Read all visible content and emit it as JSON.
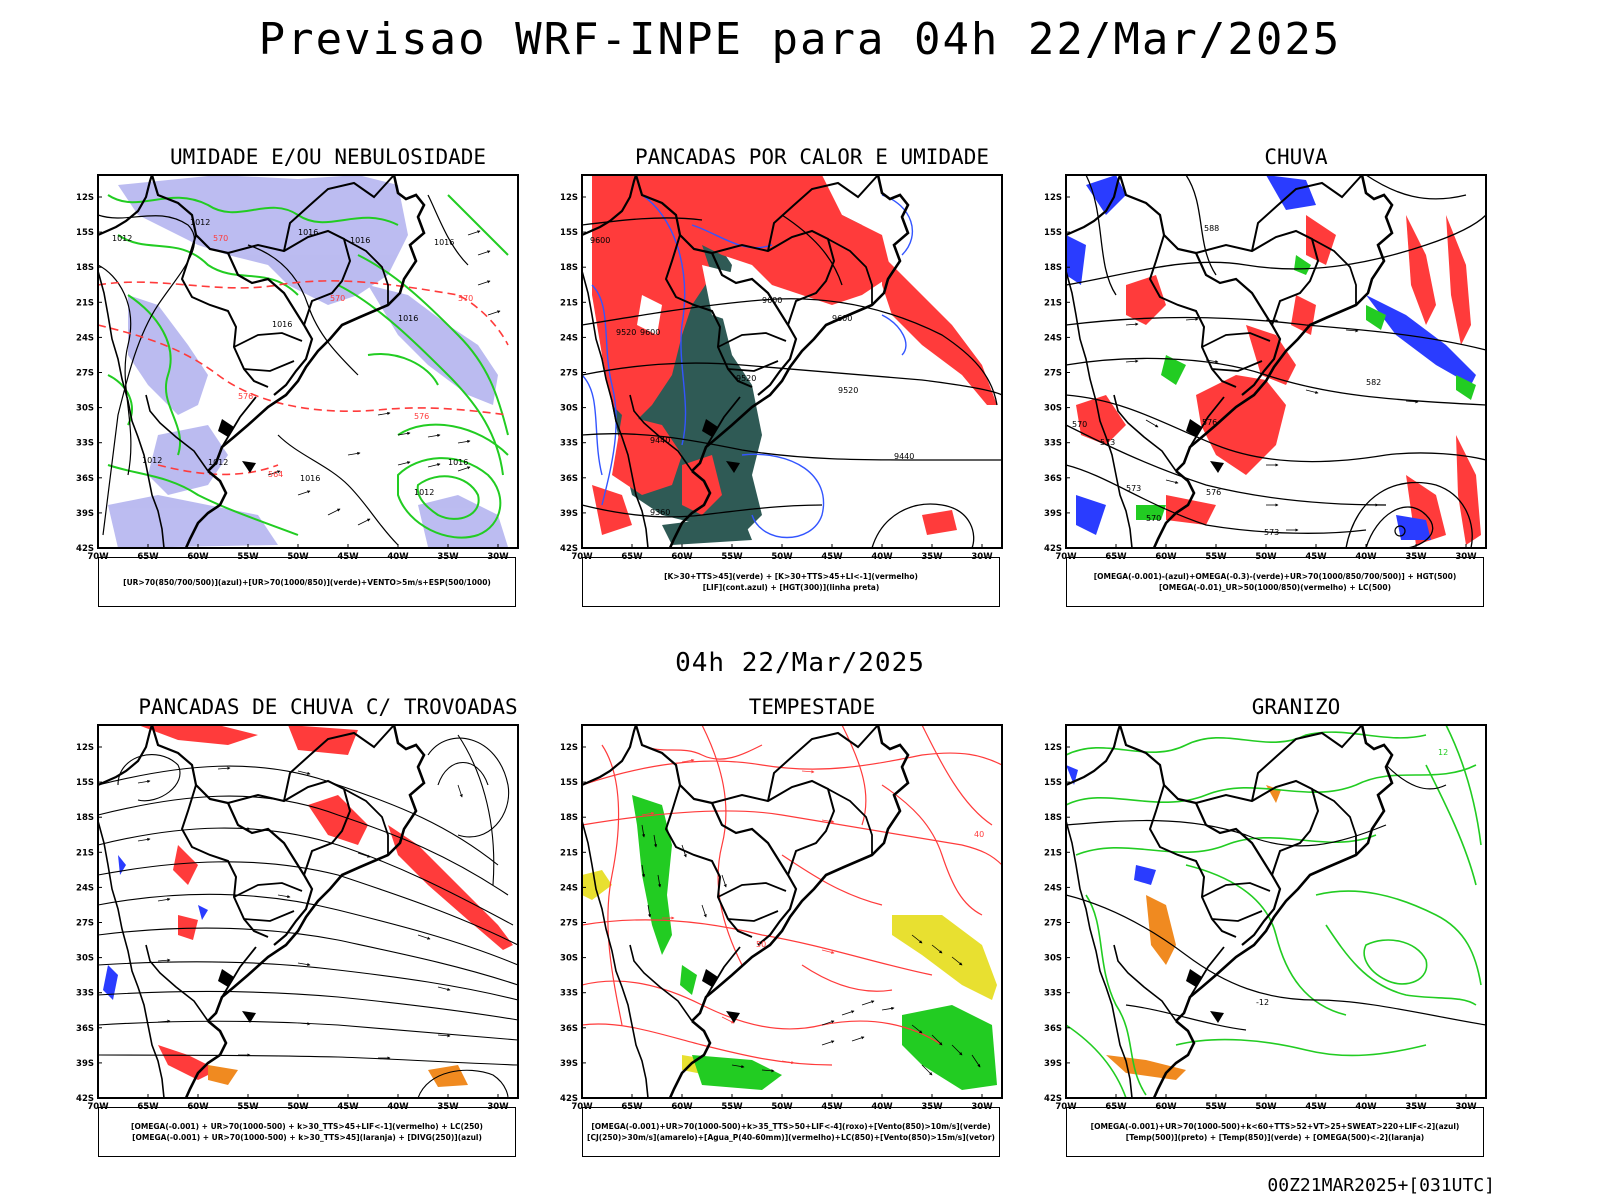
{
  "page": {
    "title": "Previsao WRF-INPE  para 04h 22/Mar/2025",
    "subtitle": "04h 22/Mar/2025",
    "footer": "00Z21MAR2025+[031UTC]"
  },
  "axes": {
    "lat_labels": [
      "12S",
      "15S",
      "18S",
      "21S",
      "24S",
      "27S",
      "30S",
      "33S",
      "36S",
      "39S",
      "42S"
    ],
    "lon_labels": [
      "70W",
      "65W",
      "60W",
      "55W",
      "50W",
      "45W",
      "40W",
      "35W",
      "30W"
    ]
  },
  "panels": [
    {
      "title": "UMIDADE E/OU NEBULOSIDADE",
      "legend": [
        "[UR>70(850/700/500)](azul)+[UR>70(1000/850)](verde)+VENTO>5m/s+ESP(500/1000)"
      ],
      "contour_labels": [
        "1012",
        "1016",
        "1016",
        "1016",
        "1012",
        "1016",
        "1016",
        "1012",
        "1012",
        "1016",
        "1012",
        "1016"
      ],
      "red_labels": [
        "570",
        "570",
        "570",
        "576",
        "576",
        "564"
      ]
    },
    {
      "title": "PANCADAS POR CALOR E UMIDADE",
      "legend": [
        "[K>30+TTS>45](verde) + [K>30+TTS>45+LI<-1](vermelho)",
        "[LIF](cont.azul) + [HGT(300)](linha preta)"
      ],
      "contour_labels": [
        "9600",
        "9600",
        "9520",
        "9600",
        "9600",
        "9520",
        "9520",
        "9440",
        "9440",
        "9360"
      ]
    },
    {
      "title": "CHUVA",
      "legend": [
        "[OMEGA(-0.001)-(azul)+OMEGA(-0.3)-(verde)+UR>70(1000/850/700/500)] + HGT(500)",
        "[OMEGA(-0.01)_UR>50(1000/850)(vermelho) + LC(500)"
      ],
      "contour_labels": [
        "588",
        "582",
        "576",
        "573",
        "570",
        "573",
        "576",
        "570",
        "573"
      ]
    },
    {
      "title": "PANCADAS DE CHUVA C/ TROVOADAS",
      "legend": [
        "[OMEGA(-0.001) + UR>70(1000-500) + k>30_TTS>45+LIF<-1](vermelho) + LC(250)",
        "[OMEGA(-0.001) + UR>70(1000-500) + k>30_TTS>45](laranja) + [DIVG(250)](azul)"
      ]
    },
    {
      "title": "TEMPESTADE",
      "legend": [
        "[OMEGA(-0.001)+UR>70(1000-500)+k>35_TTS>50+LIF<-4](roxo)+[Vento(850)>10m/s](verde)",
        "[CJ(250)>30m/s](amarelo)+[Agua_P(40-60mm)](vermelho)+LC(850)+[Vento(850)>15m/s](vetor)"
      ],
      "contour_labels": [
        "50",
        "40"
      ]
    },
    {
      "title": "GRANIZO",
      "legend": [
        "[OMEGA(-0.001)+UR>70(1000-500)+k<60+TTS>52+VT>25+SWEAT>220+LIF<-2](azul)",
        "[Temp(500)](preto) + [Temp(850)](verde) + [OMEGA(500)<-2](laranja)"
      ],
      "contour_labels": [
        "-12",
        "12"
      ]
    }
  ],
  "colors": {
    "blue_fill": "#b8b8f0",
    "red": "#ff3b3b",
    "green": "#22cc22",
    "dark_teal": "#2f5a55",
    "contour_blue": "#3355ff",
    "yellow": "#e8e030",
    "orange": "#f08a20"
  }
}
